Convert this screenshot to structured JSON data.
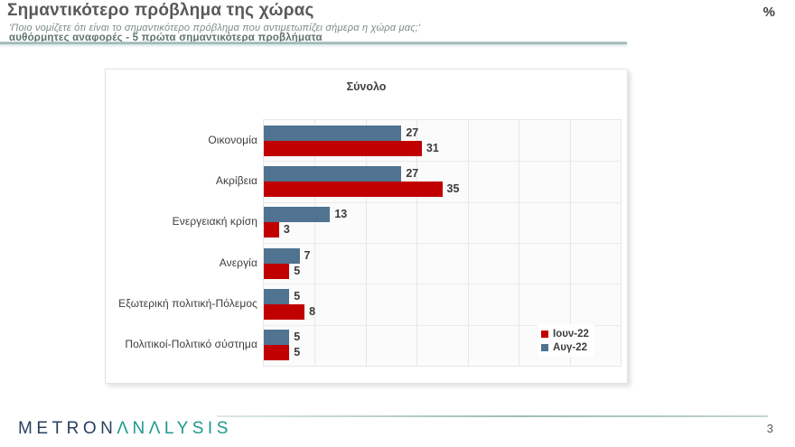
{
  "header": {
    "title": "Σημαντικότερο πρόβλημα της χώρας",
    "subtitle_question": "'Ποιο νομίζετε ότι είναι το σημαντικότερο πρόβλημα που αντιμετωπίζει σήμερα η χώρα μας;'",
    "subtitle_note": "αυθόρμητες αναφορές - 5 πρώτα σημαντικότερα προβλήματα",
    "unit_symbol": "%"
  },
  "chart_data": {
    "type": "bar",
    "orientation": "horizontal",
    "title": "Σύνολο",
    "categories": [
      "Οικονομία",
      "Ακρίβεια",
      "Ενεργειακή κρίση",
      "Ανεργία",
      "Εξωτερική πολιτική-Πόλεμος",
      "Πολιτικοί-Πολιτικό σύστημα"
    ],
    "series": [
      {
        "name": "Ιουν-22",
        "color": "#c00000",
        "values": [
          31,
          35,
          3,
          5,
          8,
          5
        ]
      },
      {
        "name": "Αυγ-22",
        "color": "#4f7390",
        "values": [
          27,
          27,
          13,
          7,
          5,
          5
        ]
      }
    ],
    "bar_display_order_top_to_bottom": [
      "Αυγ-22",
      "Ιουν-22"
    ],
    "xlim": [
      0,
      70
    ],
    "grid_step": 10,
    "grid": true,
    "value_labels": true,
    "legend_position": "inside-bottom-right"
  },
  "footer": {
    "logo_part1": "METRON",
    "logo_part2": "ΛNΛLYSIS",
    "page_number": "3"
  },
  "colors": {
    "red": "#c00000",
    "blue": "#4f7390",
    "accent_teal": "#9fbcb8"
  }
}
